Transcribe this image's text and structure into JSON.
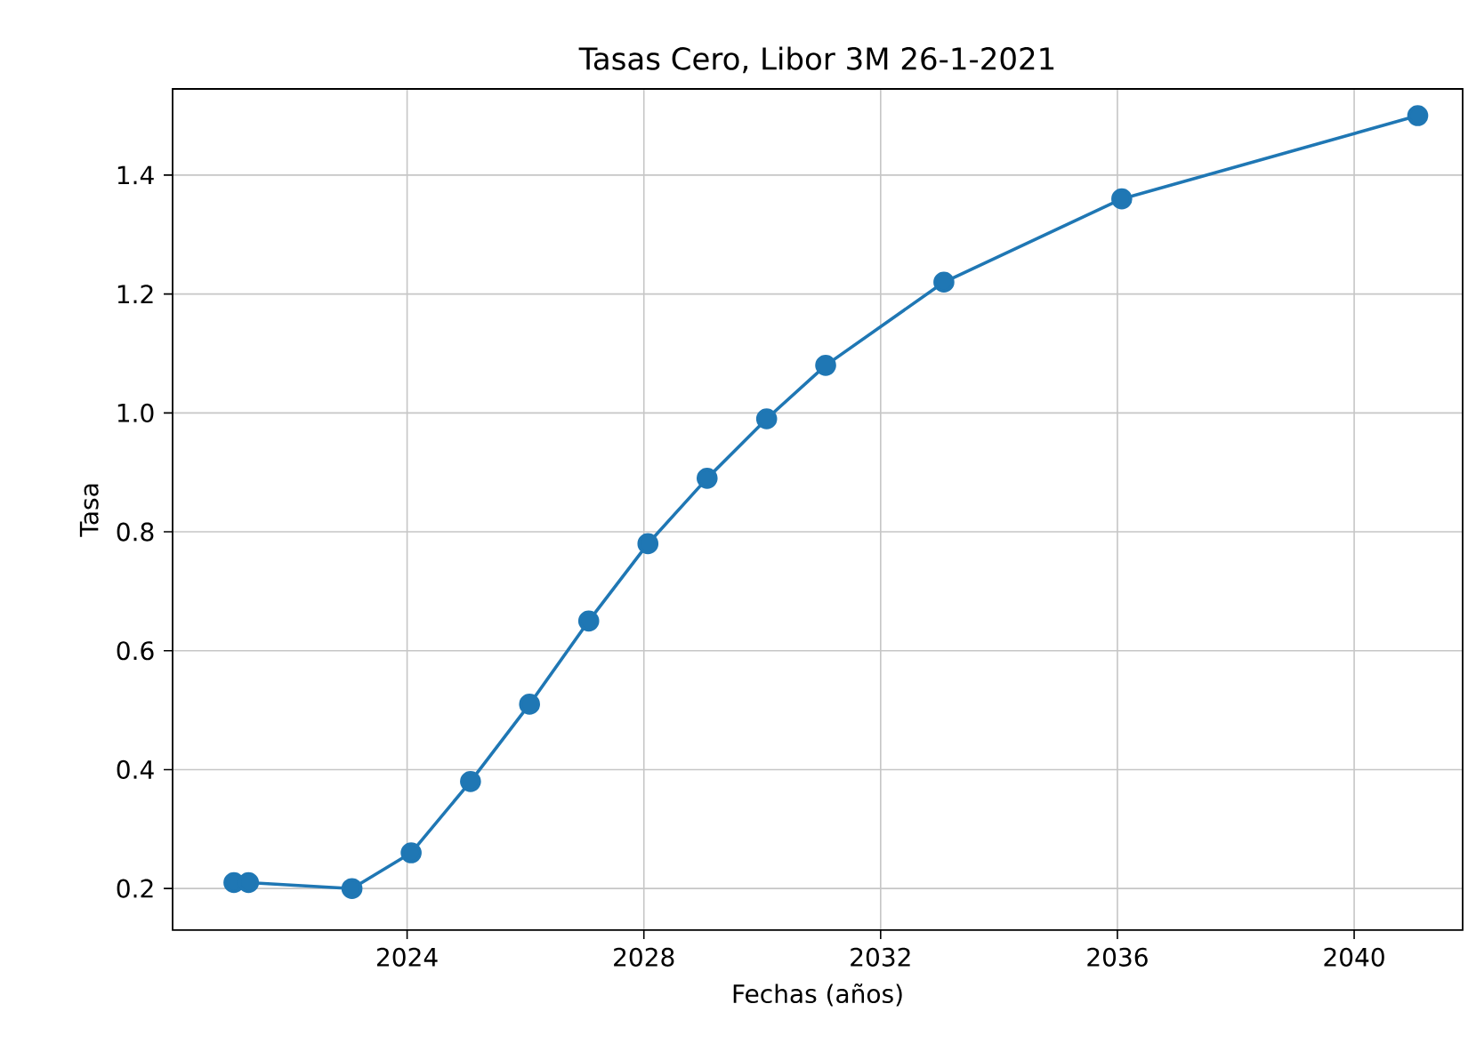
{
  "chart_data": {
    "type": "line",
    "title": "Tasas Cero, Libor 3M 26-1-2021",
    "xlabel": "Fechas (años)",
    "ylabel": "Tasa",
    "x": [
      "2021-01-28",
      "2021-04-28",
      "2023-01-26",
      "2024-01-26",
      "2025-01-27",
      "2026-01-26",
      "2027-01-26",
      "2028-01-26",
      "2029-01-26",
      "2030-01-28",
      "2031-01-27",
      "2033-01-26",
      "2036-01-28",
      "2041-01-28"
    ],
    "series": [
      {
        "color": "#1f77b4",
        "values": [
          0.21,
          0.21,
          0.2,
          0.26,
          0.38,
          0.51,
          0.65,
          0.78,
          0.89,
          0.99,
          1.08,
          1.22,
          1.36,
          1.5
        ]
      }
    ],
    "xlim": [
      "2020-01-15",
      "2041-11-01"
    ],
    "ylim": [
      0.13,
      1.545
    ],
    "xticks": [
      "2024",
      "2028",
      "2032",
      "2036",
      "2040"
    ],
    "yticks": [
      0.2,
      0.4,
      0.6,
      0.8,
      {
        "value": 1.0,
        "label": "1.0"
      },
      1.2,
      1.4
    ],
    "grid": true,
    "marker": "circle",
    "line_style": "solid"
  }
}
